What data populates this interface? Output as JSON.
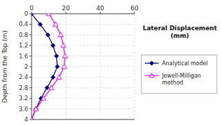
{
  "chart_data": {
    "type": "line",
    "title": "Lateral Displacement\n(mm)",
    "ylabel": "Depth from the Top (m)",
    "xlim": [
      0,
      60
    ],
    "ylim": [
      4,
      0
    ],
    "xticks": [
      0,
      20,
      40,
      60
    ],
    "yticks": [
      0,
      0.4,
      0.8,
      1.2,
      1.6,
      2,
      2.4,
      2.8,
      3.2,
      3.6,
      4
    ],
    "grid": true,
    "legend": "right",
    "series": [
      {
        "name": "Analytical model",
        "color": "#000080",
        "marker": "diamond",
        "x": [
          0,
          5.0,
          9.5,
          12.5,
          14.5,
          15.0,
          12.5,
          9.0,
          5.5,
          2.5,
          0
        ],
        "values": [
          0,
          0.4,
          0.8,
          1.2,
          1.6,
          2.0,
          2.4,
          2.8,
          3.2,
          3.6,
          4.0
        ]
      },
      {
        "name": "Jewell-Milligan\nmethod",
        "color": "#FF00FF",
        "marker": "triangle",
        "x": [
          10,
          14.0,
          17.0,
          18.5,
          19.5,
          19.0,
          16.0,
          11.5,
          7.0,
          2.5,
          0
        ],
        "values": [
          0,
          0.4,
          0.8,
          1.2,
          1.6,
          2.0,
          2.4,
          2.8,
          3.2,
          3.6,
          4.0
        ]
      }
    ]
  }
}
